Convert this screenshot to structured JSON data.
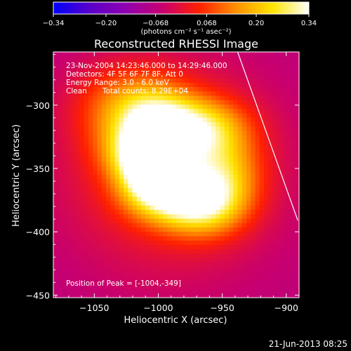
{
  "chart_data": {
    "type": "heatmap",
    "title": "Reconstructed RHESSI Image",
    "xlabel": "Heliocentric X (arcsec)",
    "ylabel": "Heliocentric Y (arcsec)",
    "xlim": [
      -1082,
      -890
    ],
    "ylim": [
      -452,
      -258
    ],
    "x_ticks": [
      -1050,
      -1000,
      -950,
      -900
    ],
    "x_tick_labels": [
      "−1050",
      "−1000",
      "−950",
      "−900"
    ],
    "y_ticks": [
      -300,
      -350,
      -400,
      -450
    ],
    "y_tick_labels": [
      "−300",
      "−350",
      "−400",
      "−450"
    ],
    "colorbar": {
      "min": -0.34,
      "max": 0.34,
      "ticks": [
        -0.34,
        -0.2,
        -0.068,
        0.068,
        0.2,
        0.34
      ],
      "tick_labels": [
        "−0.34",
        "−0.20",
        "−0.068",
        "0.068",
        "0.20",
        "0.34"
      ],
      "units_label": "(photons cm⁻² s⁻¹ asec⁻²)",
      "colors": [
        "#0000ff",
        "#5a00c8",
        "#9100b0",
        "#c8006e",
        "#ff2000",
        "#ff9000",
        "#ffe400",
        "#ffffff"
      ]
    },
    "annotations": {
      "time_range": "23-Nov-2004 14:23:46.000 to 14:29:46.000",
      "detectors": "Detectors: 4F 5F 6F 7F 8F, Att 0",
      "energy_range": "Energy Range: 3.0 - 6.0 keV",
      "method": "Clean",
      "total_counts": "Total counts: 8.29E+04",
      "peak_position": "Position of Peak = [-1004,-349]"
    },
    "peak": {
      "x": -1004,
      "y": -349
    },
    "limb_line": [
      {
        "x": -938,
        "y": -258
      },
      {
        "x": -891,
        "y": -391
      }
    ],
    "sources": [
      {
        "x": -1004,
        "y": -349,
        "sx": 17,
        "sy": 17,
        "amp": 0.34
      },
      {
        "x": -1010,
        "y": -336,
        "sx": 22,
        "sy": 16,
        "amp": 0.22
      },
      {
        "x": -995,
        "y": -370,
        "sx": 22,
        "sy": 15,
        "amp": 0.2
      },
      {
        "x": -968,
        "y": -380,
        "sx": 22,
        "sy": 16,
        "amp": 0.23
      },
      {
        "x": -950,
        "y": -356,
        "sx": 20,
        "sy": 22,
        "amp": 0.2
      },
      {
        "x": -965,
        "y": -318,
        "sx": 24,
        "sy": 16,
        "amp": 0.21
      },
      {
        "x": -1000,
        "y": -312,
        "sx": 22,
        "sy": 18,
        "amp": 0.21
      },
      {
        "x": -1025,
        "y": -300,
        "sx": 28,
        "sy": 22,
        "amp": 0.14
      },
      {
        "x": -990,
        "y": -350,
        "sx": 58,
        "sy": 56,
        "amp": 0.14
      }
    ],
    "background_level": -0.07
  },
  "footer": {
    "timestamp": "21-Jun-2013 08:25"
  }
}
